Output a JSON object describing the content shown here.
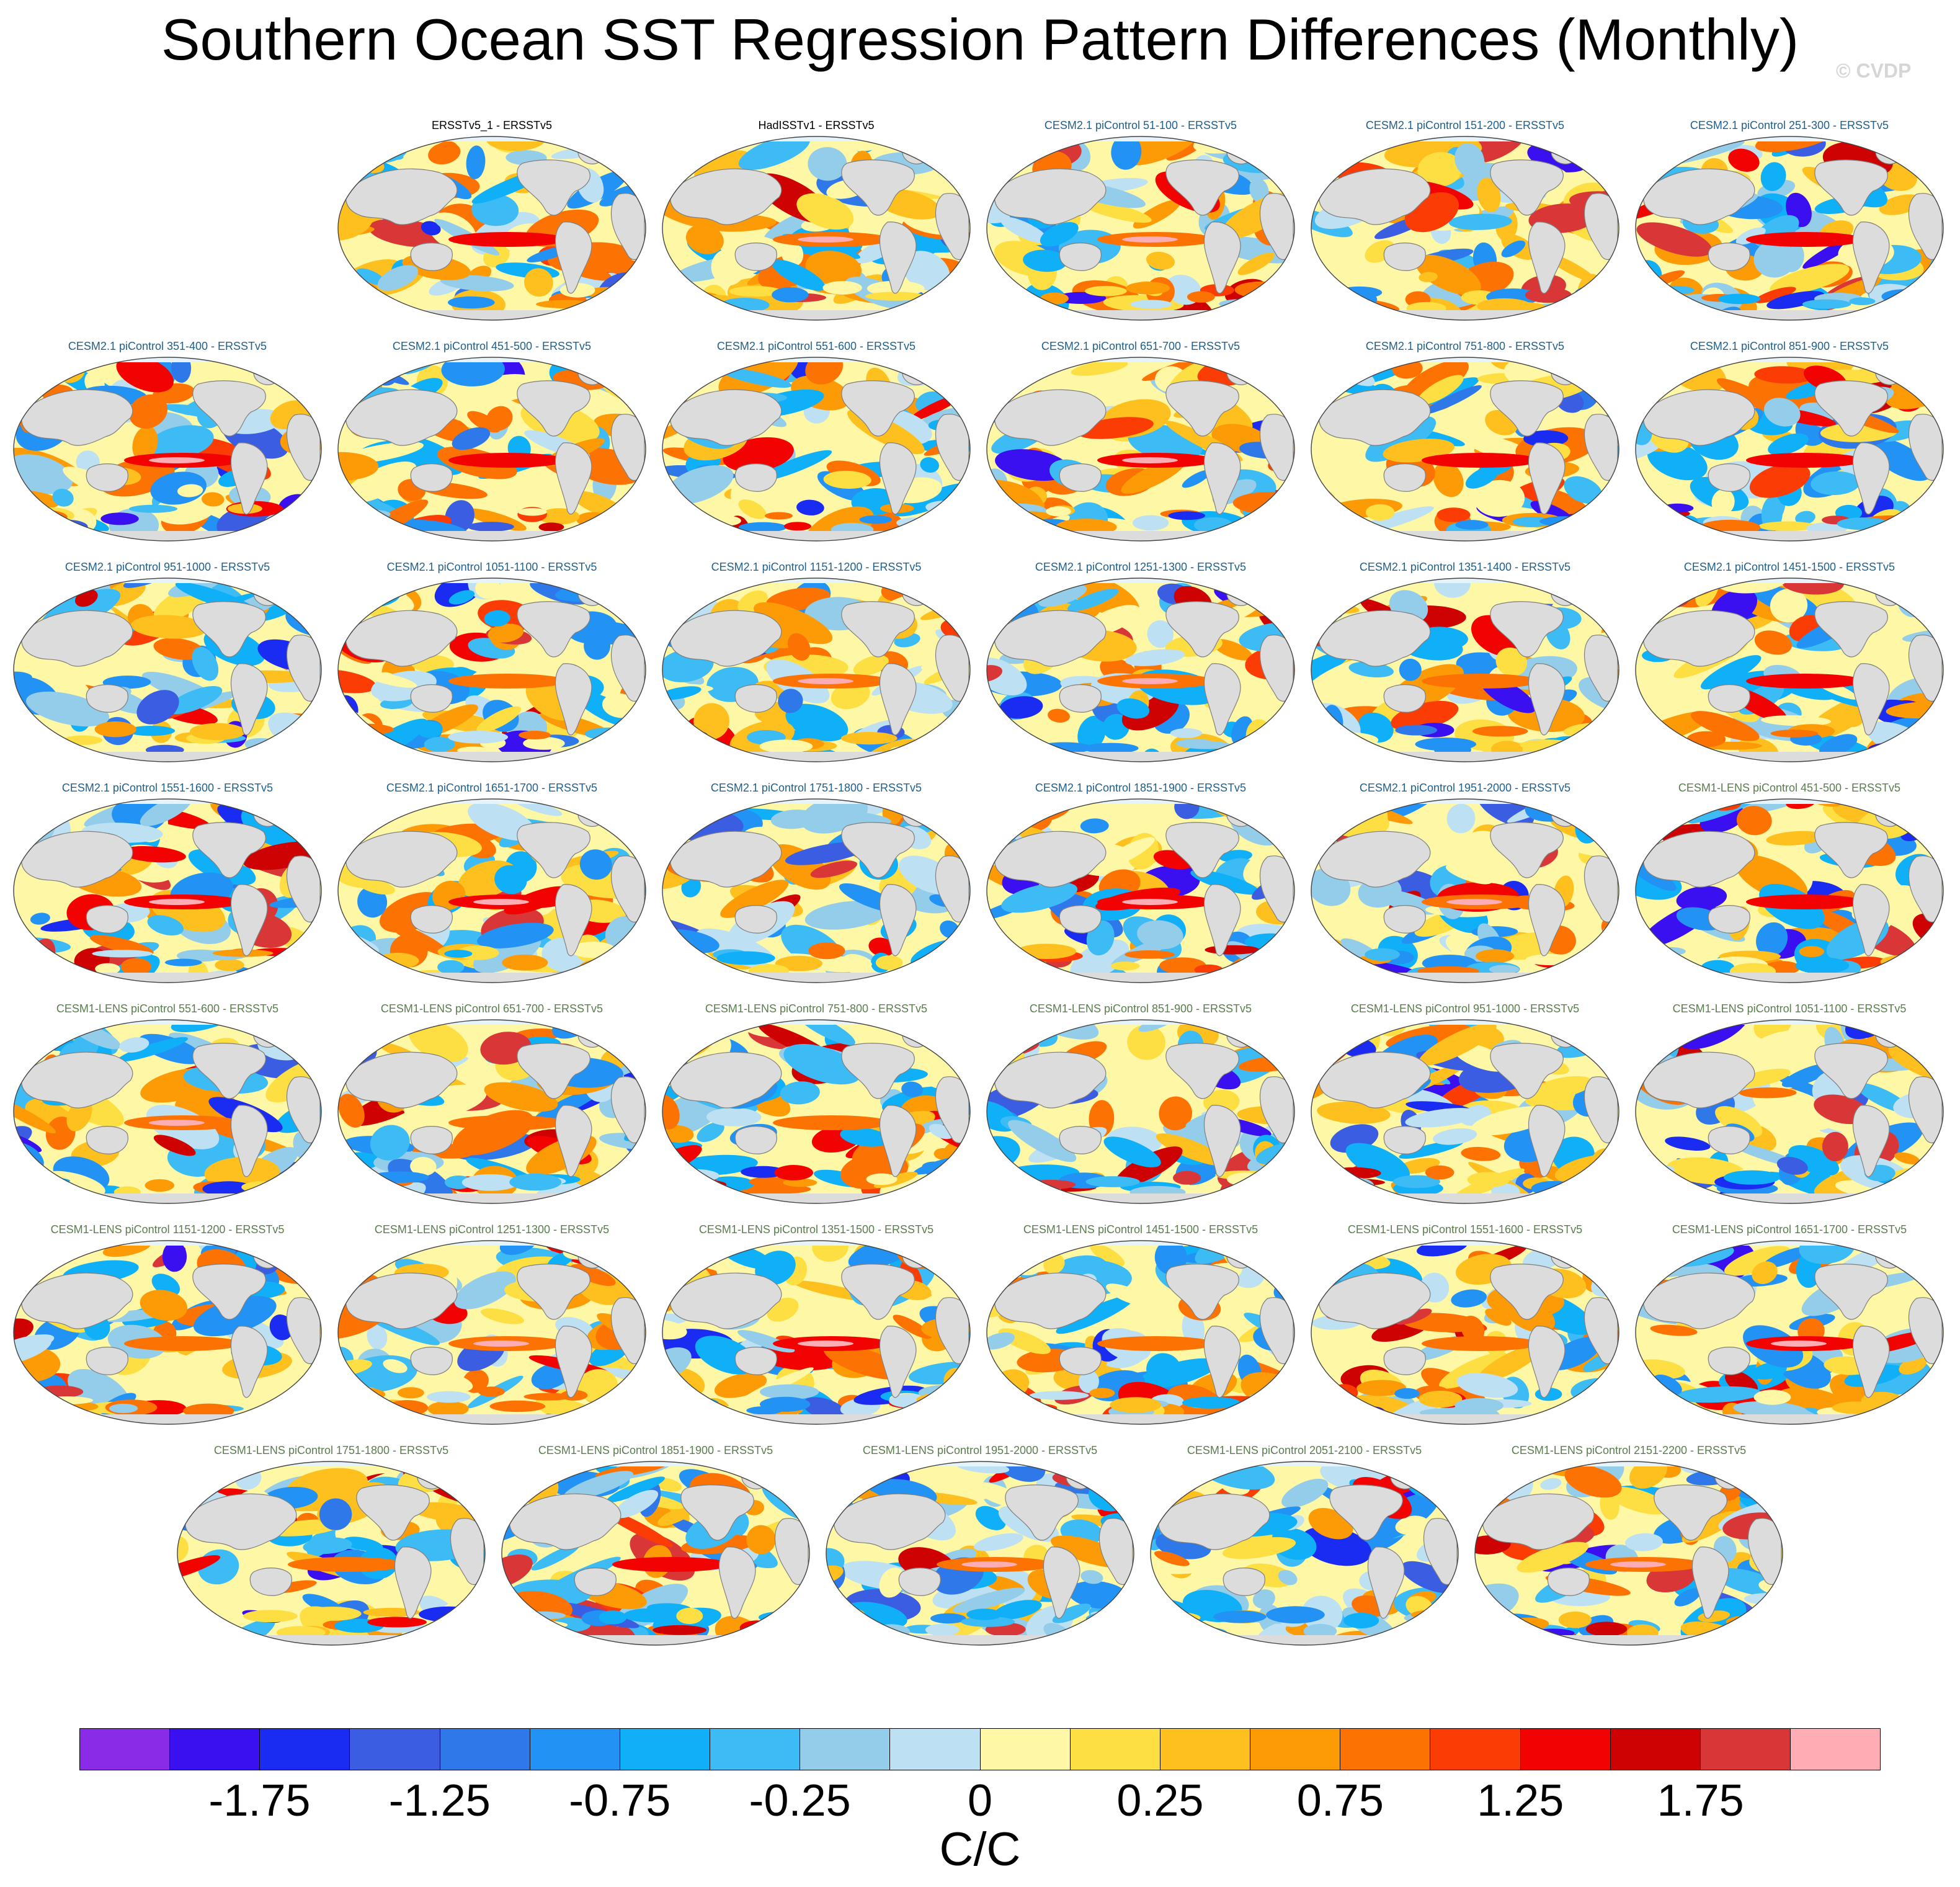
{
  "title": "Southern Ocean SST Regression Pattern Differences (Monthly)",
  "watermark": "© CVDP",
  "colors": {
    "obs_title": "#000000",
    "cesm2_title": "#1f5f8b",
    "cesm1_title": "#5a7d4e",
    "land": "#dcdcdc",
    "coast": "#7f7f7f"
  },
  "panels": [
    {
      "label": "ERSSTv5_1 - ERSSTv5",
      "group": "obs",
      "icon": "world-map-icon"
    },
    {
      "label": "HadISSTv1 - ERSSTv5",
      "group": "obs",
      "icon": "world-map-icon"
    },
    {
      "label": "CESM2.1 piControl 51-100 - ERSSTv5",
      "group": "cesm2",
      "icon": "world-map-icon"
    },
    {
      "label": "CESM2.1 piControl 151-200 - ERSSTv5",
      "group": "cesm2",
      "icon": "world-map-icon"
    },
    {
      "label": "CESM2.1 piControl 251-300 - ERSSTv5",
      "group": "cesm2",
      "icon": "world-map-icon"
    },
    {
      "label": "CESM2.1 piControl 351-400 - ERSSTv5",
      "group": "cesm2",
      "icon": "world-map-icon"
    },
    {
      "label": "CESM2.1 piControl 451-500 - ERSSTv5",
      "group": "cesm2",
      "icon": "world-map-icon"
    },
    {
      "label": "CESM2.1 piControl 551-600 - ERSSTv5",
      "group": "cesm2",
      "icon": "world-map-icon"
    },
    {
      "label": "CESM2.1 piControl 651-700 - ERSSTv5",
      "group": "cesm2",
      "icon": "world-map-icon"
    },
    {
      "label": "CESM2.1 piControl 751-800 - ERSSTv5",
      "group": "cesm2",
      "icon": "world-map-icon"
    },
    {
      "label": "CESM2.1 piControl 851-900 - ERSSTv5",
      "group": "cesm2",
      "icon": "world-map-icon"
    },
    {
      "label": "CESM2.1 piControl 951-1000 - ERSSTv5",
      "group": "cesm2",
      "icon": "world-map-icon"
    },
    {
      "label": "CESM2.1 piControl 1051-1100 - ERSSTv5",
      "group": "cesm2",
      "icon": "world-map-icon"
    },
    {
      "label": "CESM2.1 piControl 1151-1200 - ERSSTv5",
      "group": "cesm2",
      "icon": "world-map-icon"
    },
    {
      "label": "CESM2.1 piControl 1251-1300 - ERSSTv5",
      "group": "cesm2",
      "icon": "world-map-icon"
    },
    {
      "label": "CESM2.1 piControl 1351-1400 - ERSSTv5",
      "group": "cesm2",
      "icon": "world-map-icon"
    },
    {
      "label": "CESM2.1 piControl 1451-1500 - ERSSTv5",
      "group": "cesm2",
      "icon": "world-map-icon"
    },
    {
      "label": "CESM2.1 piControl 1551-1600 - ERSSTv5",
      "group": "cesm2",
      "icon": "world-map-icon"
    },
    {
      "label": "CESM2.1 piControl 1651-1700 - ERSSTv5",
      "group": "cesm2",
      "icon": "world-map-icon"
    },
    {
      "label": "CESM2.1 piControl 1751-1800 - ERSSTv5",
      "group": "cesm2",
      "icon": "world-map-icon"
    },
    {
      "label": "CESM2.1 piControl 1851-1900 - ERSSTv5",
      "group": "cesm2",
      "icon": "world-map-icon"
    },
    {
      "label": "CESM2.1 piControl 1951-2000 - ERSSTv5",
      "group": "cesm2",
      "icon": "world-map-icon"
    },
    {
      "label": "CESM1-LENS piControl 451-500 - ERSSTv5",
      "group": "cesm1",
      "icon": "world-map-icon"
    },
    {
      "label": "CESM1-LENS piControl 551-600 - ERSSTv5",
      "group": "cesm1",
      "icon": "world-map-icon"
    },
    {
      "label": "CESM1-LENS piControl 651-700 - ERSSTv5",
      "group": "cesm1",
      "icon": "world-map-icon"
    },
    {
      "label": "CESM1-LENS piControl 751-800 - ERSSTv5",
      "group": "cesm1",
      "icon": "world-map-icon"
    },
    {
      "label": "CESM1-LENS piControl 851-900 - ERSSTv5",
      "group": "cesm1",
      "icon": "world-map-icon"
    },
    {
      "label": "CESM1-LENS piControl 951-1000 - ERSSTv5",
      "group": "cesm1",
      "icon": "world-map-icon"
    },
    {
      "label": "CESM1-LENS piControl 1051-1100 - ERSSTv5",
      "group": "cesm1",
      "icon": "world-map-icon"
    },
    {
      "label": "CESM1-LENS piControl 1151-1200 - ERSSTv5",
      "group": "cesm1",
      "icon": "world-map-icon"
    },
    {
      "label": "CESM1-LENS piControl 1251-1300 - ERSSTv5",
      "group": "cesm1",
      "icon": "world-map-icon"
    },
    {
      "label": "CESM1-LENS piControl 1351-1500 - ERSSTv5",
      "group": "cesm1",
      "icon": "world-map-icon"
    },
    {
      "label": "CESM1-LENS piControl 1451-1500 - ERSSTv5",
      "group": "cesm1",
      "icon": "world-map-icon"
    },
    {
      "label": "CESM1-LENS piControl 1551-1600 - ERSSTv5",
      "group": "cesm1",
      "icon": "world-map-icon"
    },
    {
      "label": "CESM1-LENS piControl 1651-1700 - ERSSTv5",
      "group": "cesm1",
      "icon": "world-map-icon"
    },
    {
      "label": "CESM1-LENS piControl 1751-1800 - ERSSTv5",
      "group": "cesm1",
      "icon": "world-map-icon"
    },
    {
      "label": "CESM1-LENS piControl 1851-1900 - ERSSTv5",
      "group": "cesm1",
      "icon": "world-map-icon"
    },
    {
      "label": "CESM1-LENS piControl 1951-2000 - ERSSTv5",
      "group": "cesm1",
      "icon": "world-map-icon"
    },
    {
      "label": "CESM1-LENS piControl 2051-2100 - ERSSTv5",
      "group": "cesm1",
      "icon": "world-map-icon"
    },
    {
      "label": "CESM1-LENS piControl 2151-2200 - ERSSTv5",
      "group": "cesm1",
      "icon": "world-map-icon"
    }
  ],
  "colorbar": {
    "colors": [
      "#8a2be8",
      "#3a10f0",
      "#1a2cf2",
      "#3b5de2",
      "#2f78ea",
      "#2293f5",
      "#10b0f8",
      "#3dbbf5",
      "#94cdea",
      "#bde0f2",
      "#fdf7a6",
      "#fedf43",
      "#fdc01e",
      "#fd9b07",
      "#fd7303",
      "#fb3d05",
      "#f30202",
      "#ce0202",
      "#d93737",
      "#fdadb3"
    ],
    "tick_labels": [
      "-1.75",
      "-1.25",
      "-0.75",
      "-0.25",
      "0",
      "0.25",
      "0.75",
      "1.25",
      "1.75"
    ],
    "units": "C/C"
  }
}
